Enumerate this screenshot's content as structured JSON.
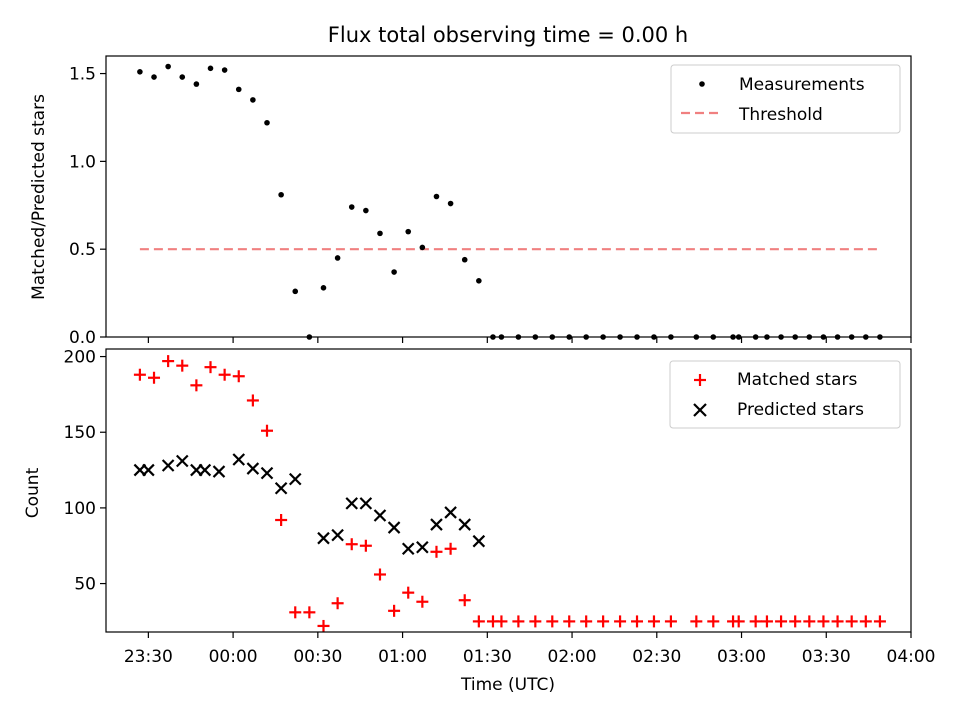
{
  "title": "Flux total observing time = 0.00 h",
  "colors": {
    "measurement": "#000000",
    "threshold": "#f08080",
    "matched": "#ff0000",
    "predicted": "#000000"
  },
  "chart_data": [
    {
      "type": "scatter",
      "panel": "top",
      "title": "Flux total observing time = 0.00 h",
      "xlabel": "",
      "ylabel": "Matched/Predicted stars",
      "ylim": [
        0,
        1.6
      ],
      "yticks": [
        0.0,
        0.5,
        1.0,
        1.5
      ],
      "ytick_labels": [
        "0.0",
        "0.5",
        "1.0",
        "1.5"
      ],
      "legend_position": "top-right",
      "legend": [
        "Measurements",
        "Threshold"
      ],
      "series": [
        {
          "name": "Measurements",
          "marker": "dot",
          "x": [
            "23:27",
            "23:32",
            "23:37",
            "23:42",
            "23:47",
            "23:52",
            "23:57",
            "00:02",
            "00:07",
            "00:12",
            "00:17",
            "00:22",
            "00:27",
            "00:32",
            "00:37",
            "00:42",
            "00:47",
            "00:52",
            "00:57",
            "01:02",
            "01:07",
            "01:12",
            "01:17",
            "01:22",
            "01:27",
            "01:32",
            "01:35",
            "01:41",
            "01:47",
            "01:53",
            "01:59",
            "02:05",
            "02:11",
            "02:17",
            "02:23",
            "02:29",
            "02:35",
            "02:44",
            "02:50",
            "02:57",
            "02:59",
            "03:05",
            "03:09",
            "03:14",
            "03:19",
            "03:24",
            "03:29",
            "03:34",
            "03:39",
            "03:44",
            "03:49"
          ],
          "y": [
            1.51,
            1.48,
            1.54,
            1.48,
            1.44,
            1.53,
            1.52,
            1.41,
            1.35,
            1.22,
            0.81,
            0.26,
            0,
            0.28,
            0.45,
            0.74,
            0.72,
            0.59,
            0.37,
            0.6,
            0.51,
            0.8,
            0.76,
            0.44,
            0.32,
            0,
            0,
            0,
            0,
            0,
            0,
            0,
            0,
            0,
            0,
            0,
            0,
            0,
            0,
            0,
            0,
            0,
            0,
            0,
            0,
            0,
            0,
            0,
            0,
            0,
            0
          ]
        },
        {
          "name": "Threshold",
          "style": "dashed",
          "x": [
            "23:27",
            "03:49"
          ],
          "y": [
            0.5,
            0.5
          ]
        }
      ]
    },
    {
      "type": "scatter",
      "panel": "bottom",
      "xlabel": "Time (UTC)",
      "ylabel": "Count",
      "ylim": [
        18,
        205
      ],
      "yticks": [
        50,
        100,
        150,
        200
      ],
      "ytick_labels": [
        "50",
        "100",
        "150",
        "200"
      ],
      "xlim": [
        "23:15",
        "04:00"
      ],
      "xticks": [
        "23:30",
        "00:00",
        "00:30",
        "01:00",
        "01:30",
        "02:00",
        "02:30",
        "03:00",
        "03:30",
        "04:00"
      ],
      "legend_position": "top-right",
      "legend": [
        "Matched stars",
        "Predicted stars"
      ],
      "series": [
        {
          "name": "Matched stars",
          "marker": "plus",
          "x": [
            "23:27",
            "23:32",
            "23:37",
            "23:42",
            "23:47",
            "23:52",
            "23:57",
            "00:02",
            "00:07",
            "00:12",
            "00:17",
            "00:22",
            "00:27",
            "00:32",
            "00:37",
            "00:42",
            "00:47",
            "00:52",
            "00:57",
            "01:02",
            "01:07",
            "01:12",
            "01:17",
            "01:22",
            "01:27",
            "01:32",
            "01:35",
            "01:41",
            "01:47",
            "01:53",
            "01:59",
            "02:05",
            "02:11",
            "02:17",
            "02:23",
            "02:29",
            "02:35",
            "02:44",
            "02:50",
            "02:57",
            "02:59",
            "03:05",
            "03:09",
            "03:14",
            "03:19",
            "03:24",
            "03:29",
            "03:34",
            "03:39",
            "03:44",
            "03:49"
          ],
          "y": [
            188,
            186,
            197,
            194,
            181,
            193,
            188,
            187,
            171,
            151,
            92,
            31,
            31,
            22,
            37,
            76,
            75,
            56,
            32,
            44,
            38,
            71,
            73,
            39,
            25,
            25,
            25,
            25,
            25,
            25,
            25,
            25,
            25,
            25,
            25,
            25,
            25,
            25,
            25,
            25,
            25,
            25,
            25,
            25,
            25,
            25,
            25,
            25,
            25,
            25,
            25
          ]
        },
        {
          "name": "Predicted stars",
          "marker": "x",
          "x": [
            "23:27",
            "23:30",
            "23:37",
            "23:42",
            "23:47",
            "23:50",
            "23:55",
            "00:02",
            "00:07",
            "00:12",
            "00:17",
            "00:22",
            "00:32",
            "00:37",
            "00:42",
            "00:47",
            "00:52",
            "00:57",
            "01:02",
            "01:07",
            "01:12",
            "01:17",
            "01:22",
            "01:27"
          ],
          "y": [
            125,
            125,
            128,
            131,
            125,
            125,
            124,
            132,
            126,
            123,
            113,
            119,
            80,
            82,
            103,
            103,
            95,
            87,
            73,
            74,
            89,
            97,
            89,
            78
          ]
        }
      ]
    }
  ]
}
